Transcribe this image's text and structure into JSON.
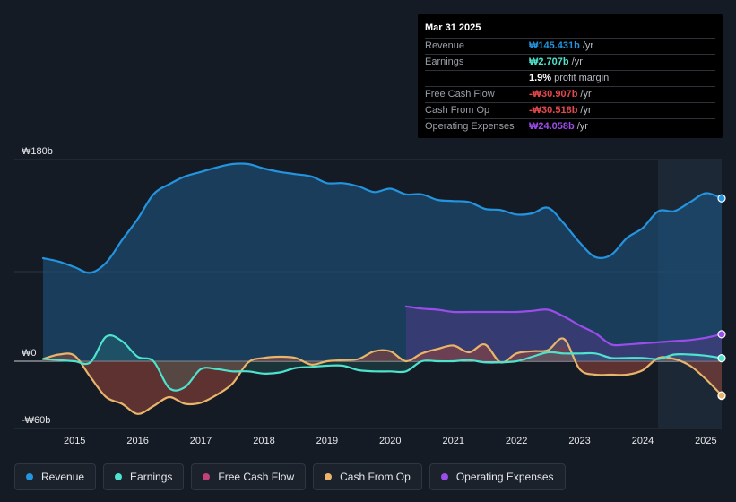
{
  "tooltip": {
    "date": "Mar 31 2025",
    "rows": [
      {
        "label": "Revenue",
        "value": "₩145.431b",
        "unit": "/yr",
        "color": "#2394df"
      },
      {
        "label": "Earnings",
        "value": "₩2.707b",
        "unit": "/yr",
        "color": "#4ee3cd"
      },
      {
        "label": "",
        "value": "1.9%",
        "unit": "profit margin",
        "color": "#ffffff"
      },
      {
        "label": "Free Cash Flow",
        "value": "-₩30.907b",
        "unit": "/yr",
        "color": "#e5484d"
      },
      {
        "label": "Cash From Op",
        "value": "-₩30.518b",
        "unit": "/yr",
        "color": "#e5484d"
      },
      {
        "label": "Operating Expenses",
        "value": "₩24.058b",
        "unit": "/yr",
        "color": "#9b4dea"
      }
    ]
  },
  "legend": [
    {
      "label": "Revenue",
      "color": "#2394df"
    },
    {
      "label": "Earnings",
      "color": "#4ee3cd"
    },
    {
      "label": "Free Cash Flow",
      "color": "#c2417a"
    },
    {
      "label": "Cash From Op",
      "color": "#e9b56a"
    },
    {
      "label": "Operating Expenses",
      "color": "#9b4dea"
    }
  ],
  "chart_data": {
    "type": "area",
    "title": "",
    "xlabel": "",
    "ylabel": "",
    "y_tick_labels": [
      {
        "label": "₩180b",
        "value": 180
      },
      {
        "label": "₩0",
        "value": 0
      },
      {
        "label": "-₩60b",
        "value": -60
      }
    ],
    "ylim": [
      -60,
      180
    ],
    "xlim": [
      2014.5,
      2025.25
    ],
    "x_ticks": [
      2015,
      2016,
      2017,
      2018,
      2019,
      2020,
      2021,
      2022,
      2023,
      2024,
      2025
    ],
    "x_tick_labels": [
      "2015",
      "2016",
      "2017",
      "2018",
      "2019",
      "2020",
      "2021",
      "2022",
      "2023",
      "2024",
      "2025"
    ],
    "highlight_start": 2024.25,
    "series": [
      {
        "name": "Revenue",
        "color": "#2394df",
        "x": [
          2014.5,
          2014.75,
          2015.0,
          2015.25,
          2015.5,
          2015.75,
          2016.0,
          2016.25,
          2016.5,
          2016.75,
          2017.0,
          2017.25,
          2017.5,
          2017.75,
          2018.0,
          2018.25,
          2018.5,
          2018.75,
          2019.0,
          2019.25,
          2019.5,
          2019.75,
          2020.0,
          2020.25,
          2020.5,
          2020.75,
          2021.0,
          2021.25,
          2021.5,
          2021.75,
          2022.0,
          2022.25,
          2022.5,
          2022.75,
          2023.0,
          2023.25,
          2023.5,
          2023.75,
          2024.0,
          2024.25,
          2024.5,
          2024.75,
          2025.0,
          2025.25
        ],
        "values": [
          92,
          89,
          84,
          79,
          88,
          108,
          127,
          149,
          158,
          165,
          169,
          173,
          176,
          176,
          172,
          169,
          167,
          165,
          159,
          159,
          156,
          151,
          154,
          149,
          149,
          144,
          143,
          142,
          136,
          135,
          131,
          132,
          137,
          123,
          106,
          93,
          95,
          110,
          119,
          134,
          134,
          142,
          150,
          145.4
        ]
      },
      {
        "name": "Earnings",
        "color": "#4ee3cd",
        "x": [
          2014.5,
          2014.75,
          2015.0,
          2015.25,
          2015.5,
          2015.75,
          2016.0,
          2016.25,
          2016.5,
          2016.75,
          2017.0,
          2017.25,
          2017.5,
          2017.75,
          2018.0,
          2018.25,
          2018.5,
          2018.75,
          2019.0,
          2019.25,
          2019.5,
          2019.75,
          2020.0,
          2020.25,
          2020.5,
          2020.75,
          2021.0,
          2021.25,
          2021.5,
          2021.75,
          2022.0,
          2022.25,
          2022.5,
          2022.75,
          2023.0,
          2023.25,
          2023.5,
          2023.75,
          2024.0,
          2024.25,
          2024.5,
          2024.75,
          2025.0,
          2025.25
        ],
        "values": [
          2,
          1,
          0,
          -1,
          22,
          18,
          4,
          0,
          -24,
          -23,
          -7,
          -7,
          -9,
          -9,
          -11,
          -10,
          -6,
          -5,
          -4,
          -4,
          -8,
          -9,
          -9,
          -9,
          0,
          0,
          0,
          1,
          -1,
          -1,
          0,
          4,
          8,
          7,
          7,
          7,
          3,
          3,
          3,
          2,
          6,
          6,
          5,
          2.7
        ]
      },
      {
        "name": "Free Cash Flow",
        "color": "#c2417a",
        "x": [
          2014.5,
          2014.75,
          2015.0,
          2015.25,
          2015.5,
          2015.75,
          2016.0,
          2016.25,
          2016.5,
          2016.75,
          2017.0,
          2017.25,
          2017.5,
          2017.75,
          2018.0,
          2018.25,
          2018.5,
          2018.75,
          2019.0,
          2019.25,
          2019.5,
          2019.75,
          2020.0,
          2020.25,
          2020.5,
          2020.75,
          2021.0,
          2021.25,
          2021.5,
          2021.75,
          2022.0,
          2022.25,
          2022.5,
          2022.75,
          2023.0,
          2023.25,
          2023.5,
          2023.75,
          2024.0,
          2024.25,
          2024.5,
          2024.75,
          2025.0,
          2025.25
        ],
        "values": [
          2,
          6,
          5,
          -14,
          -32,
          -38,
          -47,
          -40,
          -32,
          -38,
          -37,
          -30,
          -20,
          -1,
          3,
          4,
          3,
          -3,
          0,
          1,
          2,
          9,
          9,
          0,
          7,
          11,
          14,
          8,
          14,
          -1,
          7,
          9,
          9,
          12,
          -7,
          -12,
          -12,
          -12,
          -8,
          3,
          2,
          -4,
          -16,
          -30.9
        ]
      },
      {
        "name": "Cash From Op",
        "color": "#e9b56a",
        "x": [
          2014.5,
          2014.75,
          2015.0,
          2015.25,
          2015.5,
          2015.75,
          2016.0,
          2016.25,
          2016.5,
          2016.75,
          2017.0,
          2017.25,
          2017.5,
          2017.75,
          2018.0,
          2018.25,
          2018.5,
          2018.75,
          2019.0,
          2019.25,
          2019.5,
          2019.75,
          2020.0,
          2020.25,
          2020.5,
          2020.75,
          2021.0,
          2021.25,
          2021.5,
          2021.75,
          2022.0,
          2022.25,
          2022.5,
          2022.75,
          2023.0,
          2023.25,
          2023.5,
          2023.75,
          2024.0,
          2024.25,
          2024.5,
          2024.75,
          2025.0,
          2025.25
        ],
        "values": [
          2,
          6,
          5,
          -14,
          -32,
          -38,
          -47,
          -40,
          -32,
          -38,
          -37,
          -30,
          -20,
          -1,
          3,
          4,
          3,
          -3,
          0,
          1,
          2,
          9,
          9,
          0,
          7,
          11,
          14,
          8,
          15,
          -1,
          7,
          9,
          10,
          20,
          -7,
          -12,
          -12,
          -12,
          -8,
          3,
          2,
          -4,
          -16,
          -30.5
        ]
      },
      {
        "name": "Operating Expenses",
        "color": "#9b4dea",
        "x": [
          2020.25,
          2020.5,
          2020.75,
          2021.0,
          2021.25,
          2021.5,
          2021.75,
          2022.0,
          2022.25,
          2022.5,
          2022.75,
          2023.0,
          2023.25,
          2023.5,
          2023.75,
          2024.0,
          2024.25,
          2024.5,
          2024.75,
          2025.0,
          2025.25
        ],
        "values": [
          49,
          47,
          46,
          44,
          44,
          44,
          44,
          44,
          45,
          46,
          40,
          32,
          25,
          15,
          15,
          16,
          17,
          18,
          19,
          21,
          24.1
        ]
      }
    ]
  }
}
